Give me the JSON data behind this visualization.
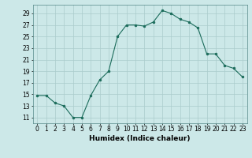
{
  "x": [
    0,
    1,
    2,
    3,
    4,
    5,
    6,
    7,
    8,
    9,
    10,
    11,
    12,
    13,
    14,
    15,
    16,
    17,
    18,
    19,
    20,
    21,
    22,
    23
  ],
  "y": [
    14.8,
    14.8,
    13.5,
    13,
    11,
    11,
    14.8,
    17.5,
    19,
    25,
    27,
    27,
    26.8,
    27.5,
    29.5,
    29,
    28,
    27.5,
    26.5,
    22,
    22,
    20,
    19.5,
    18
  ],
  "xlabel": "Humidex (Indice chaleur)",
  "xlim": [
    -0.5,
    23.5
  ],
  "ylim": [
    10,
    30.5
  ],
  "yticks": [
    11,
    13,
    15,
    17,
    19,
    21,
    23,
    25,
    27,
    29
  ],
  "xticks": [
    0,
    1,
    2,
    3,
    4,
    5,
    6,
    7,
    8,
    9,
    10,
    11,
    12,
    13,
    14,
    15,
    16,
    17,
    18,
    19,
    20,
    21,
    22,
    23
  ],
  "line_color": "#1a6b5a",
  "marker_color": "#1a6b5a",
  "bg_color": "#cce8e8",
  "grid_color": "#aacccc",
  "tick_fontsize": 5.5,
  "label_fontsize": 6.5
}
